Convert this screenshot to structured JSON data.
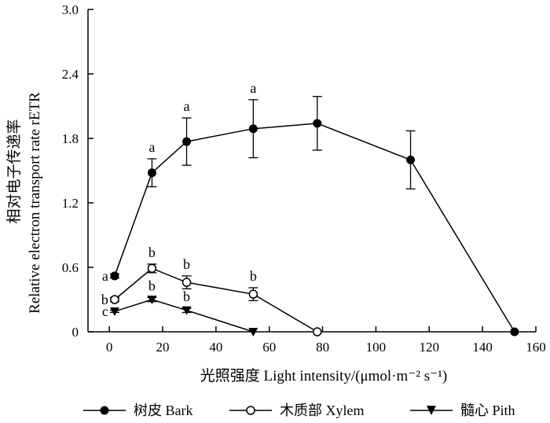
{
  "chart_data": {
    "type": "line",
    "xlabel": "光照强度 Light intensity/(μmol·m⁻² s⁻¹)",
    "ylabel_cn": "相对电子传递率",
    "ylabel_en": "Relative electron transport rate rETR",
    "xlim": [
      -8,
      160
    ],
    "ylim": [
      0,
      3.0
    ],
    "xticks": [
      0,
      20,
      40,
      60,
      80,
      100,
      120,
      140,
      160
    ],
    "yticks": [
      "0",
      "0.6",
      "1.2",
      "1.8",
      "2.4",
      "3.0"
    ],
    "series": [
      {
        "name": "树皮 Bark",
        "marker": "filled-circle",
        "x": [
          2,
          16,
          29,
          54,
          78,
          113,
          152
        ],
        "y": [
          0.52,
          1.48,
          1.77,
          1.89,
          1.94,
          1.6,
          0.0
        ],
        "err": [
          0.02,
          0.13,
          0.22,
          0.27,
          0.25,
          0.27,
          0.0
        ],
        "labels": [
          "a",
          "a",
          "a",
          "a",
          "",
          "",
          ""
        ]
      },
      {
        "name": "木质部 Xylem",
        "marker": "open-circle",
        "x": [
          2,
          16,
          29,
          54,
          78
        ],
        "y": [
          0.3,
          0.59,
          0.46,
          0.35,
          0.0
        ],
        "err": [
          0.02,
          0.04,
          0.06,
          0.06,
          0.0
        ],
        "labels": [
          "b",
          "b",
          "b",
          "b",
          ""
        ]
      },
      {
        "name": "髓心 Pith",
        "marker": "filled-triangle-down",
        "x": [
          2,
          16,
          29,
          54
        ],
        "y": [
          0.19,
          0.3,
          0.2,
          0.0
        ],
        "err": [
          0.01,
          0.02,
          0.02,
          0.0
        ],
        "labels": [
          "c",
          "b",
          "b",
          ""
        ]
      }
    ]
  }
}
